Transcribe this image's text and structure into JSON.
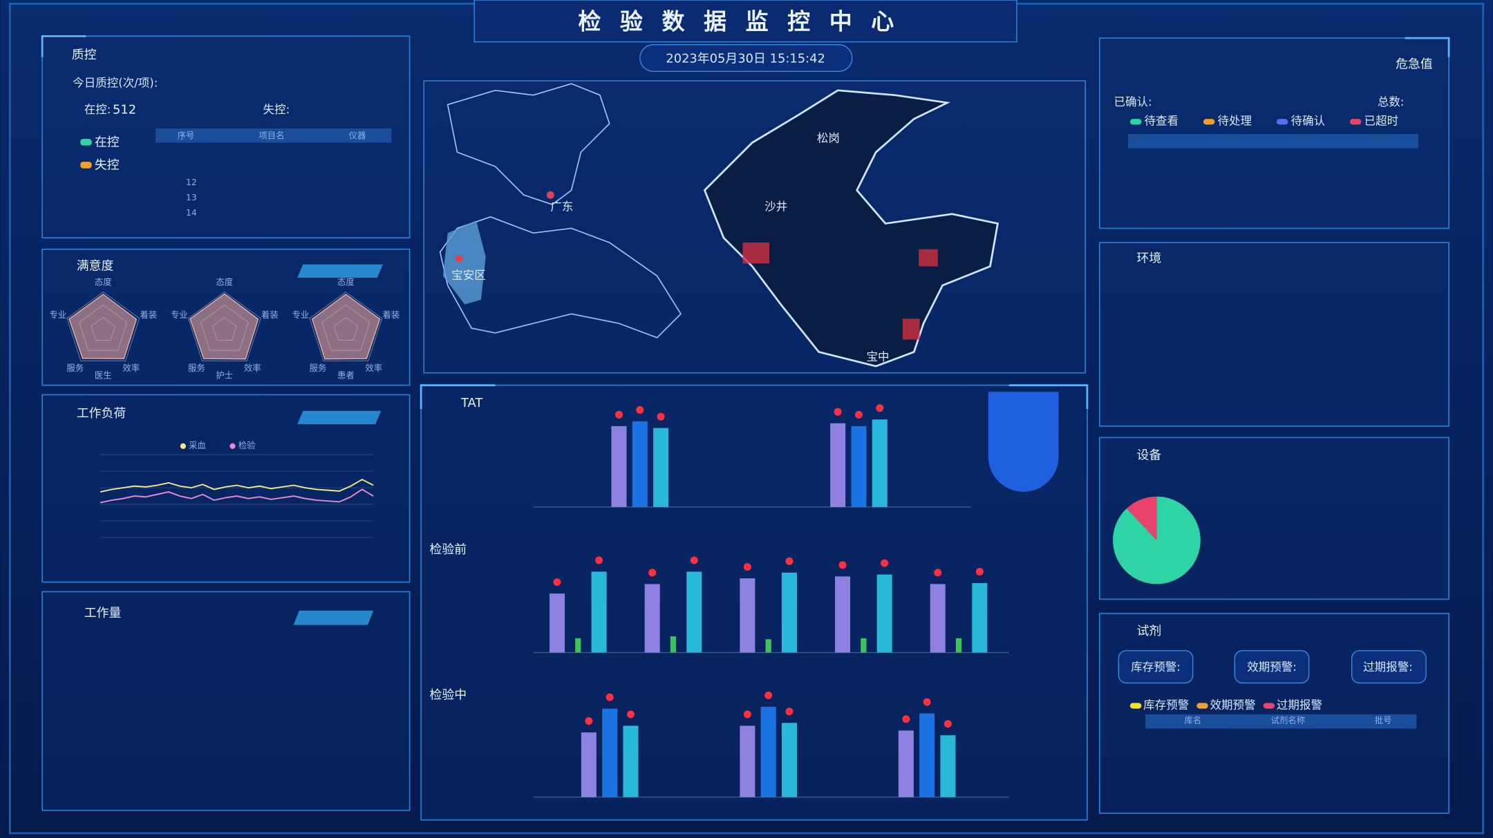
{
  "header": {
    "title": "检验数据监控中心",
    "datetime": "2023年05月30日 15:15:42"
  },
  "quality": {
    "title": "质控",
    "today_label": "今日质控(次/项):",
    "in_control_label": "在控:",
    "in_control_value": "512",
    "out_control_label": "失控:",
    "legend": [
      "在控",
      "失控"
    ],
    "table_headers": [
      "序号",
      "项目名",
      "仪器"
    ],
    "row_numbers": [
      "12",
      "13",
      "14"
    ]
  },
  "satisfaction": {
    "title": "满意度",
    "axes": [
      "态度",
      "着装",
      "效率",
      "服务",
      "专业"
    ],
    "radars": [
      {
        "name": "医生",
        "values": [
          94,
          92,
          93,
          92,
          94
        ]
      },
      {
        "name": "护士",
        "values": [
          95,
          93,
          94,
          93,
          95
        ]
      },
      {
        "name": "患者",
        "values": [
          94,
          94,
          93,
          94,
          93
        ]
      }
    ]
  },
  "workload": {
    "title": "工作负荷",
    "ylim": [
      0,
      100
    ],
    "series": [
      {
        "name": "采血",
        "color": "#f2e98a",
        "values": [
          55,
          58,
          60,
          62,
          61,
          63,
          66,
          62,
          60,
          64,
          58,
          61,
          63,
          60,
          62,
          59,
          61,
          63,
          60,
          58,
          57,
          56,
          62,
          70,
          63
        ]
      },
      {
        "name": "检验",
        "color": "#e48ad0",
        "values": [
          42,
          45,
          47,
          50,
          49,
          52,
          55,
          50,
          47,
          52,
          45,
          48,
          50,
          47,
          49,
          46,
          48,
          50,
          47,
          45,
          44,
          43,
          49,
          58,
          50
        ]
      }
    ]
  },
  "work_volume": {
    "title": "工作量"
  },
  "map": {
    "labels": [
      "广东",
      "宝安区",
      "松岗",
      "沙井",
      "宝中"
    ]
  },
  "tat": {
    "title": "TAT",
    "ylim": [
      0,
      100
    ],
    "colors": [
      "#9d8cf0",
      "#1e7bf0",
      "#2ec9e8",
      "#45d45a"
    ],
    "panels": [
      {
        "groups": [
          [
            85,
            90,
            83
          ],
          [
            88,
            85,
            92
          ]
        ]
      },
      {
        "label": "检验前",
        "groups": [
          [
            62,
            15,
            85
          ],
          [
            72,
            17,
            85
          ],
          [
            78,
            14,
            84
          ],
          [
            80,
            15,
            82
          ],
          [
            72,
            15,
            73
          ]
        ]
      },
      {
        "label": "检验中",
        "groups": [
          [
            68,
            93,
            75
          ],
          [
            75,
            95,
            78
          ],
          [
            70,
            88,
            65
          ]
        ]
      }
    ]
  },
  "critical": {
    "title": "危急值",
    "confirmed_label": "已确认:",
    "total_label": "总数:",
    "legend": [
      {
        "name": "待查看",
        "color": "#2ed3a6"
      },
      {
        "name": "待处理",
        "color": "#f0a030"
      },
      {
        "name": "待确认",
        "color": "#5a6cf0"
      },
      {
        "name": "已超时",
        "color": "#e8436a"
      }
    ]
  },
  "environment": {
    "title": "环境"
  },
  "equipment": {
    "title": "设备",
    "pie": {
      "values": [
        88,
        12
      ],
      "colors": [
        "#2ed3a6",
        "#e8436a"
      ]
    }
  },
  "reagent": {
    "title": "试剂",
    "buttons": [
      "库存预警:",
      "效期预警:",
      "过期报警:"
    ],
    "legend": [
      {
        "name": "库存预警",
        "color": "#f2e030"
      },
      {
        "name": "效期预警",
        "color": "#f0a030"
      },
      {
        "name": "过期报警",
        "color": "#e8436a"
      }
    ],
    "table_headers": [
      "库名",
      "试剂名称",
      "批号"
    ]
  }
}
